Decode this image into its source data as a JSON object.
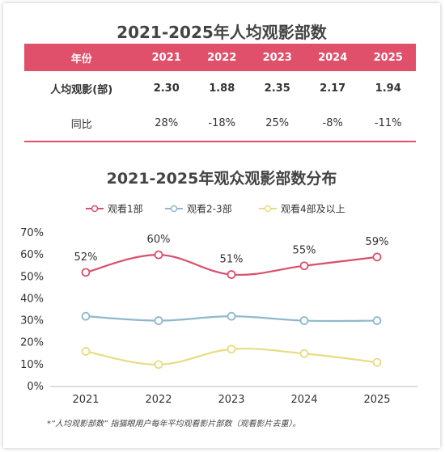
{
  "table": {
    "title": "2021-2025年人均观影部数",
    "headers": [
      "年份",
      "2021",
      "2022",
      "2023",
      "2024",
      "2025"
    ],
    "rows": [
      {
        "label": "人均观影(部)",
        "cells": [
          "2.30",
          "1.88",
          "2.35",
          "2.17",
          "1.94"
        ]
      },
      {
        "label": "同比",
        "cells": [
          "28%",
          "-18%",
          "25%",
          "-8%",
          "-11%"
        ]
      }
    ]
  },
  "chart_title": "2021-2025年观众观影部数分布",
  "footnote": "*“人均观影部数” 指猫眼用户每年平均观看影片部数（观看影片去重）。",
  "chart_data": {
    "type": "line",
    "title": "2021-2025年观众观影部数分布",
    "categories": [
      "2021",
      "2022",
      "2023",
      "2024",
      "2025"
    ],
    "y_ticks": [
      "0%",
      "10%",
      "20%",
      "30%",
      "40%",
      "50%",
      "60%",
      "70%"
    ],
    "ylim": [
      0,
      70
    ],
    "legend_position": "top-center",
    "series": [
      {
        "name": "观看1部",
        "color": "#d9506b",
        "values": [
          52,
          60,
          51,
          55,
          59
        ],
        "labels": [
          "52%",
          "60%",
          "51%",
          "55%",
          "59%"
        ]
      },
      {
        "name": "观看2-3部",
        "color": "#8fb8cc",
        "values": [
          32,
          30,
          32,
          30,
          30
        ]
      },
      {
        "name": "观看4部及以上",
        "color": "#e8dc82",
        "values": [
          16,
          10,
          17,
          15,
          11
        ]
      }
    ]
  }
}
